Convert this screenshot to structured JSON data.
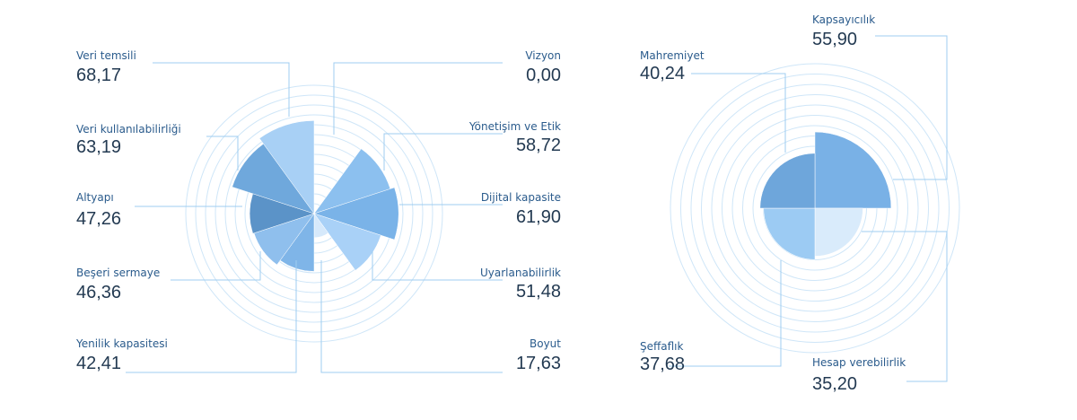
{
  "chart_data": [
    {
      "type": "rose",
      "categories": [
        "Vizyon",
        "Yönetişim ve Etik",
        "Dijital kapasite",
        "Uyarlanabilirlik",
        "Boyut",
        "Yenilik kapasitesi",
        "Beşeri sermaye",
        "Altyapı",
        "Veri kullanılabilirliği",
        "Veri temsili"
      ],
      "values": [
        0.0,
        58.72,
        61.9,
        51.48,
        17.63,
        42.41,
        46.36,
        47.26,
        63.19,
        68.17
      ],
      "value_labels": [
        "0,00",
        "58,72",
        "61,90",
        "51,48",
        "17,63",
        "42,41",
        "46,36",
        "47,26",
        "63,19",
        "68,17"
      ],
      "colors": [
        "#9ccaf3",
        "#8cc0ef",
        "#7ab3e8",
        "#a9d1f7",
        "#d6e9fb",
        "#7fb5e8",
        "#8fbfed",
        "#5b93c8",
        "#6fa8dc",
        "#a8d0f5"
      ],
      "rlim": [
        0,
        100
      ]
    },
    {
      "type": "rose",
      "categories": [
        "Kapsayıcılık",
        "Hesap verebilirlik",
        "Şeffaflık",
        "Mahremiyet"
      ],
      "values": [
        55.9,
        35.2,
        37.68,
        40.24
      ],
      "value_labels": [
        "55,90",
        "35,20",
        "37,68",
        "40,24"
      ],
      "colors": [
        "#79b1e6",
        "#d9ebfb",
        "#9ccbf3",
        "#6ea6db"
      ],
      "rlim": [
        0,
        100
      ]
    }
  ]
}
